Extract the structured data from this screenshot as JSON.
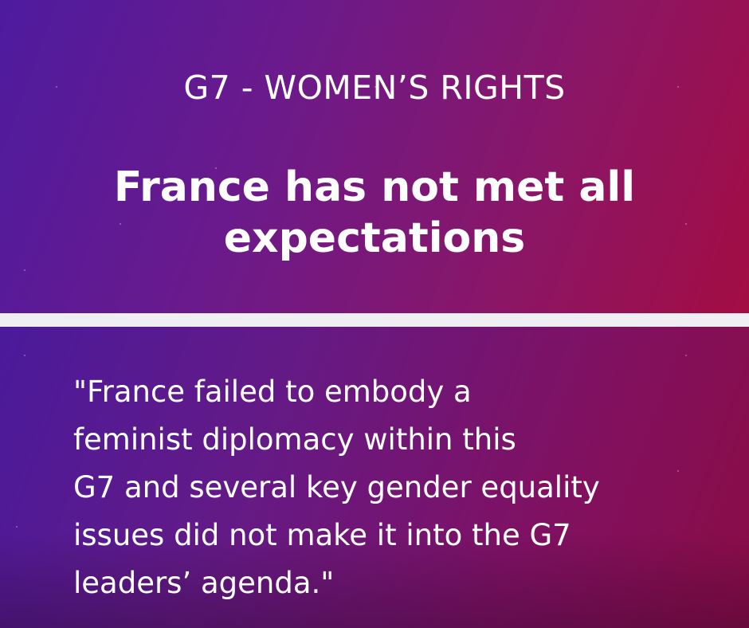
{
  "colors": {
    "divider": "#efeef2",
    "text": "#ffffff",
    "gradient_start": "#4e1b9f",
    "gradient_end": "#a30d43"
  },
  "kicker": "G7 - WOMEN’S RIGHTS",
  "headline": {
    "lines": [
      "France has not met all",
      "expectations"
    ]
  },
  "quote": {
    "lines": [
      "\"France failed to embody a",
      "feminist diplomacy within this",
      "G7 and several key gender equality",
      "issues did not make it into the G7",
      "leaders’ agenda.\""
    ]
  }
}
